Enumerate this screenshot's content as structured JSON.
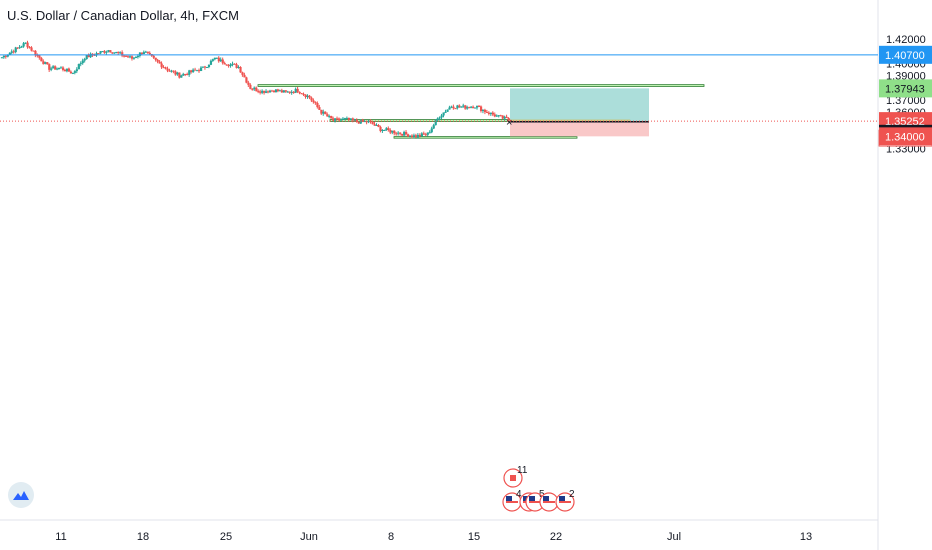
{
  "header": {
    "title": "U.S. Dollar / Canadian Dollar, 4h, FXCM"
  },
  "countdown": "07:19",
  "price_labels": {
    "resistance": "1.40700",
    "target": "1.37943",
    "current": "1.35252",
    "entry": "1.35196",
    "stop": "1.34000"
  },
  "events": {
    "ca_count": "11",
    "us_counts": [
      "4",
      "5",
      "2"
    ]
  },
  "colors": {
    "up": "#26a69a",
    "down": "#ef5350",
    "hline": "#2196f3",
    "zone_fill": "#b9f6a9",
    "zone_border": "#2e7d32",
    "profit": "#a8dcd8",
    "loss": "#f9c5c5",
    "overlap": "#d4c97c",
    "stop_badge": "#ef5350",
    "entry_badge": "#131722"
  },
  "chart_data": {
    "type": "candlestick",
    "title": "U.S. Dollar / Canadian Dollar, 4h, FXCM",
    "y_ticks": [
      "1.42000",
      "1.41000",
      "1.40000",
      "1.39000",
      "1.37000",
      "1.36000",
      "1.33000"
    ],
    "x_ticks": [
      "11",
      "18",
      "25",
      "Jun",
      "8",
      "15",
      "22",
      "Jul",
      "13"
    ],
    "ylim": [
      1.3268,
      1.4286
    ],
    "grid": false,
    "close_series_keypoints": [
      {
        "x": "May 6",
        "close": 1.405
      },
      {
        "x": "May 8",
        "close": 1.4165
      },
      {
        "x": "May 10",
        "close": 1.396
      },
      {
        "x": "May 11",
        "close": 1.396
      },
      {
        "x": "May 12",
        "close": 1.392
      },
      {
        "x": "May 13",
        "close": 1.405
      },
      {
        "x": "May 15",
        "close": 1.411
      },
      {
        "x": "May 17",
        "close": 1.404
      },
      {
        "x": "May 18",
        "close": 1.41
      },
      {
        "x": "May 19",
        "close": 1.402
      },
      {
        "x": "May 20",
        "close": 1.395
      },
      {
        "x": "May 21",
        "close": 1.39
      },
      {
        "x": "May 22",
        "close": 1.393
      },
      {
        "x": "May 23",
        "close": 1.396
      },
      {
        "x": "May 24",
        "close": 1.404
      },
      {
        "x": "May 25",
        "close": 1.4
      },
      {
        "x": "May 26",
        "close": 1.397
      },
      {
        "x": "May 27",
        "close": 1.38
      },
      {
        "x": "May 28",
        "close": 1.377
      },
      {
        "x": "May 29",
        "close": 1.378
      },
      {
        "x": "May 30",
        "close": 1.376
      },
      {
        "x": "May 31",
        "close": 1.378
      },
      {
        "x": "Jun 1",
        "close": 1.372
      },
      {
        "x": "Jun 2",
        "close": 1.36
      },
      {
        "x": "Jun 3",
        "close": 1.353
      },
      {
        "x": "Jun 4",
        "close": 1.354
      },
      {
        "x": "Jun 5",
        "close": 1.352
      },
      {
        "x": "Jun 6",
        "close": 1.352
      },
      {
        "x": "Jun 7",
        "close": 1.346
      },
      {
        "x": "Jun 8",
        "close": 1.344
      },
      {
        "x": "Jun 9",
        "close": 1.342
      },
      {
        "x": "Jun 10",
        "close": 1.34
      },
      {
        "x": "Jun 11",
        "close": 1.342
      },
      {
        "x": "Jun 12",
        "close": 1.357
      },
      {
        "x": "Jun 13",
        "close": 1.365
      },
      {
        "x": "Jun 14",
        "close": 1.364
      },
      {
        "x": "Jun 15",
        "close": 1.365
      },
      {
        "x": "Jun 16",
        "close": 1.36
      },
      {
        "x": "Jun 17",
        "close": 1.356
      },
      {
        "x": "Jun 18",
        "close": 1.353
      }
    ],
    "horizontal_lines": [
      {
        "price": 1.407,
        "style": "solid"
      },
      {
        "price": 1.35252,
        "style": "dotted"
      }
    ],
    "zones": [
      {
        "price_top": 1.3825,
        "price_bottom": 1.381
      },
      {
        "price_top": 1.3538,
        "price_bottom": 1.3522
      },
      {
        "price_top": 1.3398,
        "price_bottom": 1.3385
      }
    ],
    "position": {
      "entry": 1.35196,
      "target": 1.37943,
      "stop": 1.34
    }
  }
}
